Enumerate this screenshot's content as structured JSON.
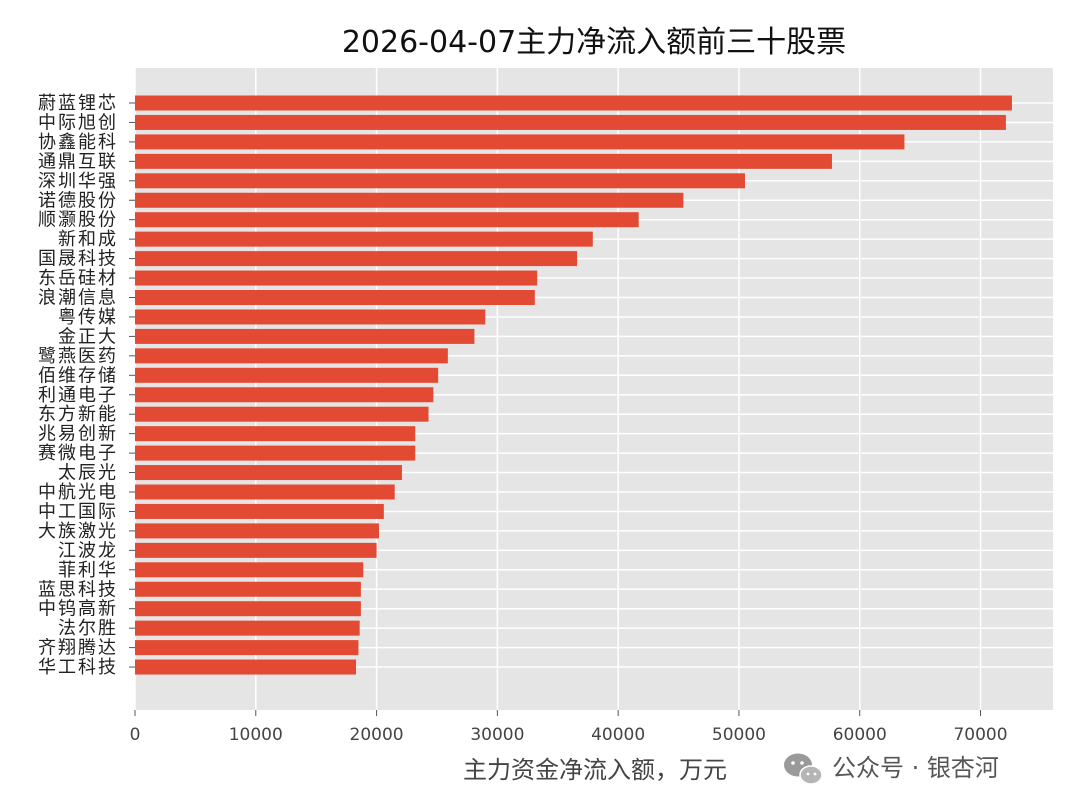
{
  "chart_data": {
    "type": "bar",
    "orientation": "horizontal",
    "title": "2026-04-07主力净流入额前三十股票",
    "xlabel": "主力资金净流入额，万元",
    "ylabel": "",
    "xlim": [
      0,
      76000
    ],
    "xticks": [
      0,
      10000,
      20000,
      30000,
      40000,
      50000,
      60000,
      70000
    ],
    "grid": true,
    "bar_color": "#e24a33",
    "background_color": "#e5e5e5",
    "categories": [
      "蔚蓝锂芯",
      "中际旭创",
      "协鑫能科",
      "通鼎互联",
      "深圳华强",
      "诺德股份",
      "顺灏股份",
      "新和成",
      "国晟科技",
      "东岳硅材",
      "浪潮信息",
      "粤传媒",
      "金正大",
      "鹭燕医药",
      "佰维存储",
      "利通电子",
      "东方新能",
      "兆易创新",
      "赛微电子",
      "太辰光",
      "中航光电",
      "中工国际",
      "大族激光",
      "江波龙",
      "菲利华",
      "蓝思科技",
      "中钨高新",
      "法尔胜",
      "齐翔腾达",
      "华工科技"
    ],
    "values": [
      72600,
      72100,
      63700,
      57700,
      50500,
      45400,
      41700,
      37900,
      36600,
      33300,
      33100,
      29000,
      28100,
      25900,
      25100,
      24700,
      24300,
      23200,
      23200,
      22100,
      21500,
      20600,
      20200,
      20000,
      18900,
      18700,
      18700,
      18600,
      18500,
      18300
    ]
  },
  "watermark": {
    "icon": "wechat-icon",
    "text": "公众号 · 银杏河"
  }
}
